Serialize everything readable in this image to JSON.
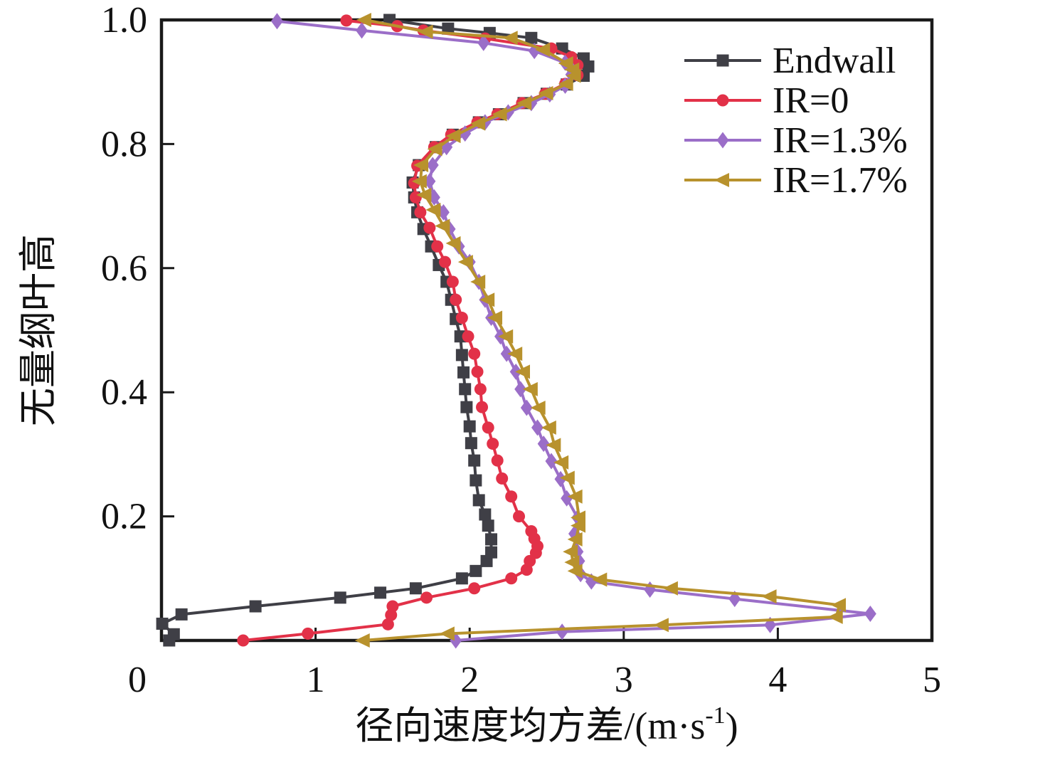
{
  "figure": {
    "background": "#ffffff",
    "axis_color": "#1a1a1a"
  },
  "chart_data": {
    "type": "line",
    "title": "",
    "xlabel_main": "径向速度均方差/(m·s",
    "xlabel_sup": "-1",
    "xlabel_close": ")",
    "ylabel": "无量纲叶高",
    "xlim": [
      0,
      5
    ],
    "ylim": [
      0,
      1.0
    ],
    "x_ticks": [
      0,
      1,
      2,
      3,
      4,
      5
    ],
    "x_tick_labels": [
      "0",
      "1",
      "2",
      "3",
      "4",
      "5"
    ],
    "y_ticks": [
      0.2,
      0.4,
      0.6,
      0.8,
      1.0
    ],
    "y_tick_labels": [
      "0.2",
      "0.4",
      "0.6",
      "0.8",
      "1.0"
    ],
    "grid": false,
    "legend_position": "upper-right-inside",
    "series": [
      {
        "name": "Endwall",
        "color": "#3f3f46",
        "marker": "square",
        "points": [
          [
            0.05,
            0.0
          ],
          [
            0.08,
            0.01
          ],
          [
            0.005,
            0.027
          ],
          [
            0.13,
            0.042
          ],
          [
            0.61,
            0.055
          ],
          [
            1.16,
            0.069
          ],
          [
            1.42,
            0.077
          ],
          [
            1.65,
            0.084
          ],
          [
            1.95,
            0.1
          ],
          [
            2.04,
            0.112
          ],
          [
            2.11,
            0.128
          ],
          [
            2.14,
            0.142
          ],
          [
            2.14,
            0.163
          ],
          [
            2.12,
            0.185
          ],
          [
            2.1,
            0.203
          ],
          [
            2.06,
            0.226
          ],
          [
            2.04,
            0.258
          ],
          [
            2.03,
            0.29
          ],
          [
            2.01,
            0.318
          ],
          [
            2.0,
            0.345
          ],
          [
            1.98,
            0.376
          ],
          [
            1.97,
            0.405
          ],
          [
            1.96,
            0.432
          ],
          [
            1.95,
            0.46
          ],
          [
            1.94,
            0.49
          ],
          [
            1.91,
            0.518
          ],
          [
            1.88,
            0.549
          ],
          [
            1.85,
            0.578
          ],
          [
            1.8,
            0.605
          ],
          [
            1.75,
            0.635
          ],
          [
            1.7,
            0.663
          ],
          [
            1.66,
            0.69
          ],
          [
            1.64,
            0.714
          ],
          [
            1.63,
            0.738
          ],
          [
            1.67,
            0.766
          ],
          [
            1.78,
            0.795
          ],
          [
            1.89,
            0.815
          ],
          [
            2.06,
            0.835
          ],
          [
            2.19,
            0.848
          ],
          [
            2.35,
            0.866
          ],
          [
            2.5,
            0.881
          ],
          [
            2.63,
            0.896
          ],
          [
            2.74,
            0.91
          ],
          [
            2.77,
            0.925
          ],
          [
            2.74,
            0.938
          ],
          [
            2.6,
            0.954
          ],
          [
            2.4,
            0.971
          ],
          [
            2.13,
            0.979
          ],
          [
            1.86,
            0.986
          ],
          [
            1.48,
            1.0
          ]
        ]
      },
      {
        "name": "IR=0",
        "color": "#e23148",
        "marker": "circle",
        "points": [
          [
            0.53,
            0.0
          ],
          [
            0.95,
            0.011
          ],
          [
            1.47,
            0.026
          ],
          [
            1.49,
            0.041
          ],
          [
            1.5,
            0.055
          ],
          [
            1.72,
            0.069
          ],
          [
            2.03,
            0.084
          ],
          [
            2.27,
            0.1
          ],
          [
            2.37,
            0.114
          ],
          [
            2.39,
            0.128
          ],
          [
            2.43,
            0.141
          ],
          [
            2.44,
            0.152
          ],
          [
            2.42,
            0.164
          ],
          [
            2.4,
            0.176
          ],
          [
            2.32,
            0.2
          ],
          [
            2.27,
            0.232
          ],
          [
            2.21,
            0.261
          ],
          [
            2.18,
            0.29
          ],
          [
            2.15,
            0.317
          ],
          [
            2.12,
            0.343
          ],
          [
            2.08,
            0.376
          ],
          [
            2.07,
            0.405
          ],
          [
            2.05,
            0.433
          ],
          [
            2.03,
            0.462
          ],
          [
            1.99,
            0.49
          ],
          [
            1.95,
            0.52
          ],
          [
            1.91,
            0.549
          ],
          [
            1.89,
            0.578
          ],
          [
            1.84,
            0.61
          ],
          [
            1.79,
            0.635
          ],
          [
            1.74,
            0.665
          ],
          [
            1.68,
            0.69
          ],
          [
            1.65,
            0.714
          ],
          [
            1.64,
            0.737
          ],
          [
            1.66,
            0.765
          ],
          [
            1.77,
            0.795
          ],
          [
            1.88,
            0.815
          ],
          [
            2.05,
            0.835
          ],
          [
            2.18,
            0.848
          ],
          [
            2.34,
            0.866
          ],
          [
            2.49,
            0.881
          ],
          [
            2.62,
            0.897
          ],
          [
            2.7,
            0.911
          ],
          [
            2.7,
            0.927
          ],
          [
            2.66,
            0.94
          ],
          [
            2.53,
            0.954
          ],
          [
            2.1,
            0.97
          ],
          [
            1.7,
            0.983
          ],
          [
            1.53,
            0.99
          ],
          [
            1.2,
            0.999
          ]
        ]
      },
      {
        "name": "IR=1.3%",
        "color": "#9b6ec8",
        "marker": "diamond",
        "points": [
          [
            1.91,
            0.0
          ],
          [
            2.6,
            0.014
          ],
          [
            3.95,
            0.025
          ],
          [
            4.6,
            0.043
          ],
          [
            3.72,
            0.067
          ],
          [
            3.17,
            0.082
          ],
          [
            2.79,
            0.095
          ],
          [
            2.72,
            0.107
          ],
          [
            2.71,
            0.128
          ],
          [
            2.7,
            0.143
          ],
          [
            2.68,
            0.172
          ],
          [
            2.7,
            0.198
          ],
          [
            2.63,
            0.229
          ],
          [
            2.59,
            0.26
          ],
          [
            2.53,
            0.289
          ],
          [
            2.48,
            0.317
          ],
          [
            2.44,
            0.343
          ],
          [
            2.37,
            0.375
          ],
          [
            2.33,
            0.405
          ],
          [
            2.3,
            0.433
          ],
          [
            2.24,
            0.462
          ],
          [
            2.2,
            0.49
          ],
          [
            2.14,
            0.52
          ],
          [
            2.1,
            0.549
          ],
          [
            2.06,
            0.578
          ],
          [
            2.0,
            0.61
          ],
          [
            1.93,
            0.635
          ],
          [
            1.87,
            0.663
          ],
          [
            1.83,
            0.69
          ],
          [
            1.77,
            0.714
          ],
          [
            1.74,
            0.74
          ],
          [
            1.76,
            0.766
          ],
          [
            1.85,
            0.795
          ],
          [
            1.97,
            0.817
          ],
          [
            2.1,
            0.835
          ],
          [
            2.25,
            0.851
          ],
          [
            2.4,
            0.866
          ],
          [
            2.52,
            0.88
          ],
          [
            2.62,
            0.894
          ],
          [
            2.66,
            0.912
          ],
          [
            2.66,
            0.921
          ],
          [
            2.62,
            0.931
          ],
          [
            2.42,
            0.95
          ],
          [
            2.09,
            0.963
          ],
          [
            1.3,
            0.983
          ],
          [
            0.75,
            0.998
          ]
        ]
      },
      {
        "name": "IR=1.7%",
        "color": "#b8922d",
        "marker": "triangle-left",
        "points": [
          [
            1.31,
            0.0
          ],
          [
            1.86,
            0.011
          ],
          [
            3.25,
            0.025
          ],
          [
            4.38,
            0.038
          ],
          [
            4.4,
            0.057
          ],
          [
            3.95,
            0.071
          ],
          [
            3.31,
            0.084
          ],
          [
            2.85,
            0.098
          ],
          [
            2.69,
            0.112
          ],
          [
            2.67,
            0.126
          ],
          [
            2.66,
            0.143
          ],
          [
            2.69,
            0.163
          ],
          [
            2.71,
            0.185
          ],
          [
            2.71,
            0.198
          ],
          [
            2.69,
            0.232
          ],
          [
            2.64,
            0.262
          ],
          [
            2.6,
            0.287
          ],
          [
            2.55,
            0.315
          ],
          [
            2.52,
            0.343
          ],
          [
            2.45,
            0.375
          ],
          [
            2.4,
            0.405
          ],
          [
            2.35,
            0.433
          ],
          [
            2.3,
            0.462
          ],
          [
            2.24,
            0.49
          ],
          [
            2.17,
            0.52
          ],
          [
            2.12,
            0.549
          ],
          [
            2.06,
            0.578
          ],
          [
            1.98,
            0.61
          ],
          [
            1.9,
            0.64
          ],
          [
            1.83,
            0.668
          ],
          [
            1.77,
            0.694
          ],
          [
            1.71,
            0.718
          ],
          [
            1.68,
            0.74
          ],
          [
            1.69,
            0.766
          ],
          [
            1.78,
            0.792
          ],
          [
            1.9,
            0.813
          ],
          [
            2.06,
            0.833
          ],
          [
            2.2,
            0.848
          ],
          [
            2.36,
            0.866
          ],
          [
            2.5,
            0.882
          ],
          [
            2.63,
            0.897
          ],
          [
            2.68,
            0.91
          ],
          [
            2.67,
            0.92
          ],
          [
            2.63,
            0.93
          ],
          [
            2.48,
            0.952
          ],
          [
            2.27,
            0.971
          ],
          [
            1.72,
            0.981
          ],
          [
            1.32,
            1.0
          ]
        ]
      }
    ],
    "legend": [
      {
        "label": "Endwall"
      },
      {
        "label": "IR=0"
      },
      {
        "label": "IR=1.3%"
      },
      {
        "label": "IR=1.7%"
      }
    ]
  }
}
